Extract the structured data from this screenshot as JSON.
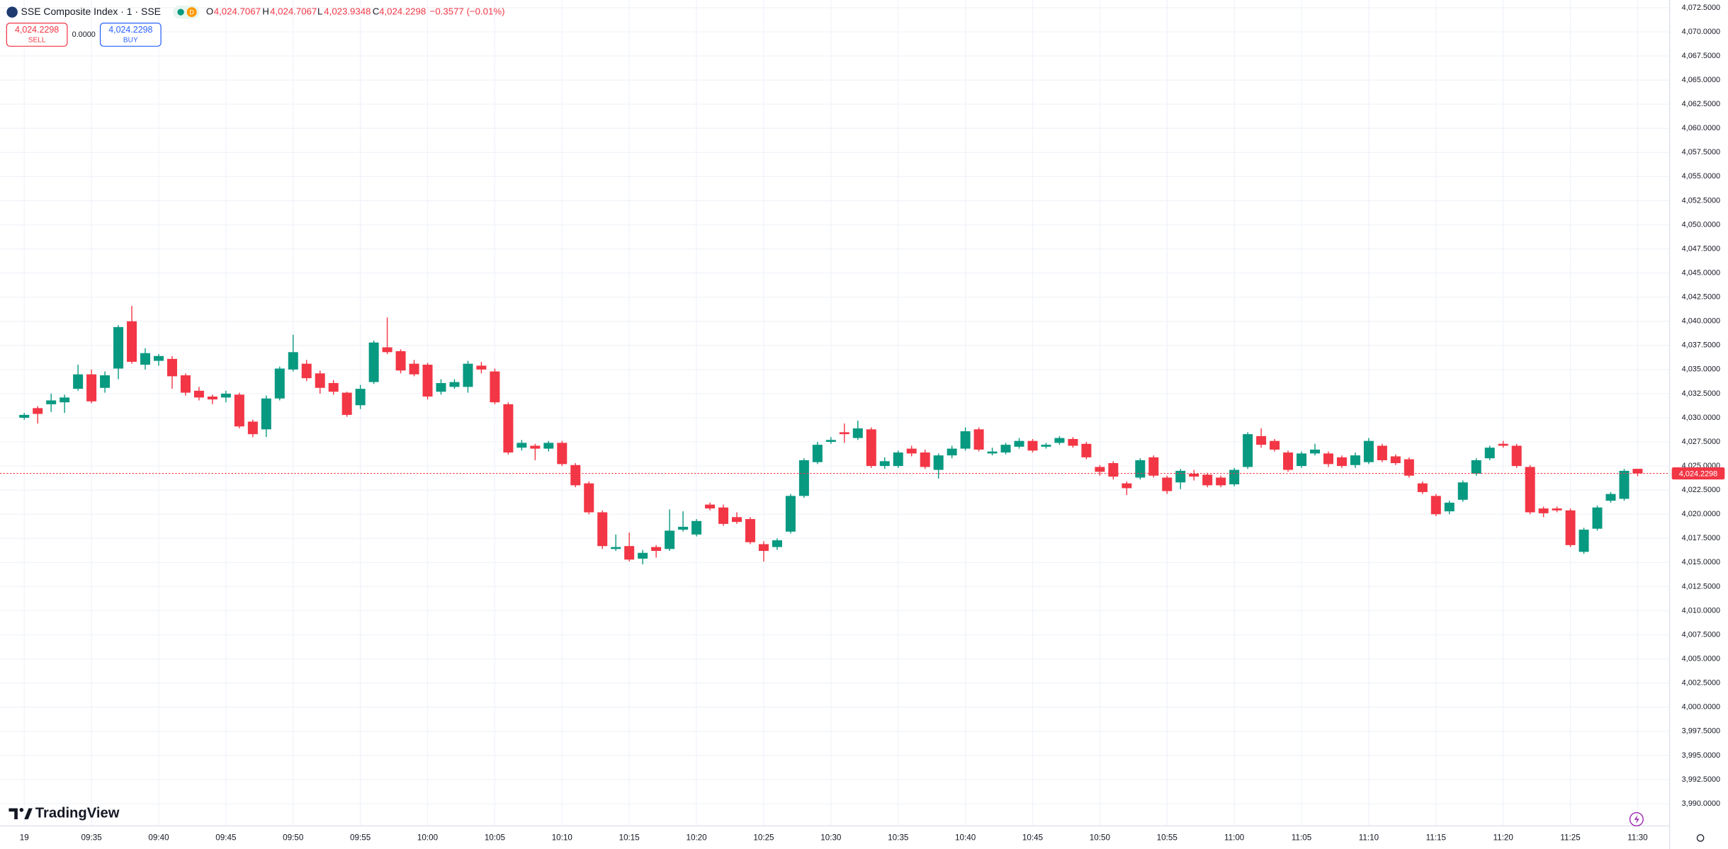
{
  "header": {
    "title": "SSE Composite Index · 1 · SSE",
    "badge": "D",
    "open_label": "O",
    "open": "4,024.7067",
    "high_label": "H",
    "high": "4,024.7067",
    "low_label": "L",
    "low": "4,023.9348",
    "close_label": "C",
    "close": "4,024.2298",
    "change": "−0.3577 (−0.01%)",
    "sell_price": "4,024.2298",
    "sell_label": "SELL",
    "spread": "0.0000",
    "buy_price": "4,024.2298",
    "buy_label": "BUY"
  },
  "logo": "TradingView",
  "chart_data": {
    "type": "candlestick",
    "up_color": "#089981",
    "down_color": "#f23645",
    "grid": true,
    "categories": [
      "19",
      null,
      null,
      null,
      null,
      "09:35",
      null,
      null,
      null,
      null,
      "09:40",
      null,
      null,
      null,
      null,
      "09:45",
      null,
      null,
      null,
      null,
      "09:50",
      null,
      null,
      null,
      null,
      "09:55",
      null,
      null,
      null,
      null,
      "10:00",
      null,
      null,
      null,
      null,
      "10:05",
      null,
      null,
      null,
      null,
      "10:10",
      null,
      null,
      null,
      null,
      "10:15",
      null,
      null,
      null,
      null,
      "10:20",
      null,
      null,
      null,
      null,
      "10:25",
      null,
      null,
      null,
      null,
      "10:30",
      null,
      null,
      null,
      null,
      "10:35",
      null,
      null,
      null,
      null,
      "10:40",
      null,
      null,
      null,
      null,
      "10:45",
      null,
      null,
      null,
      null,
      "10:50",
      null,
      null,
      null,
      null,
      "10:55",
      null,
      null,
      null,
      null,
      "11:00",
      null,
      null,
      null,
      null,
      "11:05",
      null,
      null,
      null,
      null,
      "11:10",
      null,
      null,
      null,
      null,
      "11:15",
      null,
      null,
      null,
      null,
      "11:20",
      null,
      null,
      null,
      null,
      "11:25",
      null,
      null,
      null,
      null,
      "11:30"
    ],
    "open": [
      4030.0,
      4031.0,
      4031.4,
      4031.6,
      4033.0,
      4034.5,
      4033.1,
      4035.1,
      4040.0,
      4035.5,
      4035.9,
      4036.1,
      4034.4,
      4032.8,
      4032.2,
      4032.1,
      4032.4,
      4029.6,
      4028.8,
      4032.0,
      4035.0,
      4035.6,
      4034.6,
      4033.6,
      4032.6,
      4031.3,
      4033.7,
      4037.3,
      4036.9,
      4035.6,
      4035.5,
      4032.7,
      4033.2,
      4033.2,
      4035.4,
      4034.8,
      4031.4,
      4026.9,
      4027.1,
      4026.8,
      4027.4,
      4025.1,
      4023.2,
      4020.2,
      4016.4,
      4016.7,
      4015.4,
      4016.6,
      4016.4,
      4018.4,
      4017.9,
      4021.0,
      4020.7,
      4019.7,
      4019.5,
      4016.9,
      4016.6,
      4018.2,
      4021.9,
      4025.4,
      4027.5,
      4028.5,
      4027.9,
      4028.8,
      4025.0,
      4025.0,
      4026.8,
      4026.4,
      4024.6,
      4026.1,
      4026.8,
      4028.8,
      4026.3,
      4026.4,
      4027.0,
      4027.6,
      4027.0,
      4027.4,
      4027.8,
      4027.3,
      4024.9,
      4025.3,
      4023.2,
      4023.8,
      4025.9,
      4023.8,
      4023.3,
      4024.2,
      4024.1,
      4023.8,
      4023.1,
      4024.9,
      4028.1,
      4027.6,
      4026.4,
      4025.0,
      4026.3,
      4026.3,
      4025.9,
      4025.1,
      4025.4,
      4027.1,
      4026.0,
      4025.7,
      4023.2,
      4021.9,
      4020.3,
      4021.5,
      4024.2,
      4025.8,
      4027.3,
      4027.1,
      4024.9,
      4020.6,
      4020.6,
      4020.4,
      4016.1,
      4018.5,
      4021.4,
      4021.6,
      4024.7067
    ],
    "high": [
      4030.5,
      4031.2,
      4032.5,
      4032.4,
      4035.5,
      4035.0,
      4034.8,
      4039.6,
      4041.6,
      4037.2,
      4036.6,
      4036.4,
      4034.6,
      4033.2,
      4032.4,
      4032.8,
      4032.6,
      4029.8,
      4032.3,
      4035.3,
      4038.6,
      4036.0,
      4034.9,
      4033.9,
      4032.7,
      4033.4,
      4038.0,
      4040.4,
      4037.1,
      4036.0,
      4035.7,
      4034.0,
      4034.0,
      4035.9,
      4035.8,
      4035.1,
      4031.6,
      4027.7,
      4027.3,
      4027.6,
      4027.6,
      4025.3,
      4023.4,
      4020.4,
      4017.9,
      4018.1,
      4016.3,
      4016.8,
      4020.5,
      4020.3,
      4019.5,
      4021.2,
      4021.0,
      4020.2,
      4019.7,
      4017.2,
      4017.5,
      4022.1,
      4025.8,
      4027.5,
      4028.0,
      4029.4,
      4029.7,
      4029.0,
      4025.9,
      4026.6,
      4027.1,
      4026.7,
      4026.3,
      4027.1,
      4029.0,
      4029.0,
      4026.9,
      4027.4,
      4027.9,
      4027.8,
      4027.4,
      4028.1,
      4028.0,
      4027.5,
      4025.1,
      4025.5,
      4023.4,
      4025.8,
      4026.1,
      4024.0,
      4024.7,
      4024.6,
      4024.3,
      4024.0,
      4024.8,
      4028.5,
      4028.9,
      4027.8,
      4026.6,
      4026.5,
      4027.3,
      4026.5,
      4026.1,
      4026.4,
      4027.9,
      4027.3,
      4026.2,
      4025.9,
      4023.4,
      4022.1,
      4021.4,
      4023.5,
      4025.8,
      4027.1,
      4027.6,
      4027.3,
      4025.1,
      4020.8,
      4020.8,
      4020.6,
      4018.6,
      4020.9,
      4022.3,
      4024.7,
      4024.7067
    ],
    "low": [
      4029.8,
      4029.4,
      4030.6,
      4030.5,
      4032.8,
      4031.5,
      4032.6,
      4034.0,
      4035.6,
      4035.0,
      4035.4,
      4033.0,
      4032.3,
      4031.8,
      4031.4,
      4031.6,
      4028.9,
      4028.0,
      4028.0,
      4031.8,
      4034.8,
      4033.8,
      4032.5,
      4032.4,
      4030.1,
      4030.9,
      4033.5,
      4036.6,
      4034.6,
      4034.3,
      4031.9,
      4032.4,
      4033.0,
      4032.6,
      4034.6,
      4031.4,
      4026.2,
      4026.6,
      4025.6,
      4026.5,
      4025.0,
      4022.8,
      4020.0,
      4016.4,
      4016.2,
      4015.1,
      4014.8,
      4015.5,
      4016.2,
      4018.2,
      4017.7,
      4020.4,
      4018.8,
      4019.0,
      4016.9,
      4015.1,
      4016.3,
      4018.0,
      4021.7,
      4025.2,
      4027.3,
      4027.4,
      4027.7,
      4024.8,
      4024.7,
      4024.8,
      4026.0,
      4024.7,
      4023.7,
      4025.8,
      4026.6,
      4026.5,
      4026.1,
      4026.2,
      4026.8,
      4026.4,
      4026.8,
      4027.2,
      4026.9,
      4025.7,
      4024.0,
      4023.6,
      4022.0,
      4023.6,
      4023.8,
      4022.1,
      4022.6,
      4023.5,
      4022.8,
      4022.8,
      4022.9,
      4024.7,
      4026.9,
      4026.5,
      4024.4,
      4024.8,
      4026.1,
      4024.9,
      4024.8,
      4024.8,
      4025.2,
      4025.4,
      4025.1,
      4023.8,
      4022.1,
      4019.8,
      4020.0,
      4021.3,
      4024.0,
      4025.6,
      4026.9,
      4024.8,
      4020.0,
      4019.7,
      4020.2,
      4016.6,
      4015.9,
      4018.3,
      4021.2,
      4021.4,
      4023.9348
    ],
    "close": [
      4030.3,
      4030.4,
      4031.8,
      4032.1,
      4034.5,
      4031.7,
      4034.4,
      4039.4,
      4035.8,
      4036.7,
      4036.4,
      4034.3,
      4032.6,
      4032.1,
      4031.9,
      4032.5,
      4029.1,
      4028.3,
      4032.0,
      4035.1,
      4036.8,
      4034.1,
      4033.1,
      4032.7,
      4030.3,
      4033.0,
      4037.8,
      4036.8,
      4034.9,
      4034.5,
      4032.2,
      4033.6,
      4033.7,
      4035.6,
      4035.0,
      4031.6,
      4026.4,
      4027.4,
      4026.8,
      4027.4,
      4025.2,
      4023.0,
      4020.2,
      4016.7,
      4016.6,
      4015.3,
      4016.0,
      4016.2,
      4018.3,
      4018.7,
      4019.3,
      4020.6,
      4019.0,
      4019.2,
      4017.1,
      4016.2,
      4017.3,
      4021.9,
      4025.6,
      4027.2,
      4027.7,
      4028.3,
      4028.9,
      4025.0,
      4025.5,
      4026.4,
      4026.3,
      4024.9,
      4026.1,
      4026.8,
      4028.6,
      4026.7,
      4026.5,
      4027.2,
      4027.6,
      4026.6,
      4027.2,
      4027.9,
      4027.1,
      4025.9,
      4024.4,
      4023.9,
      4022.7,
      4025.6,
      4024.0,
      4022.4,
      4024.5,
      4023.9,
      4023.0,
      4023.0,
      4024.6,
      4028.3,
      4027.2,
      4026.7,
      4024.6,
      4026.3,
      4026.7,
      4025.2,
      4025.0,
      4026.1,
      4027.6,
      4025.6,
      4025.3,
      4024.0,
      4022.3,
      4020.0,
      4021.2,
      4023.3,
      4025.6,
      4026.9,
      4027.1,
      4025.0,
      4020.2,
      4020.1,
      4020.4,
      4016.8,
      4018.4,
      4020.7,
      4022.1,
      4024.5,
      4024.2298
    ],
    "last_price_label": "4,024.2298",
    "ylim": [
      3987.7,
      4073.3
    ],
    "yticks": [
      {
        "value": 3990,
        "label": "3,990.0000"
      },
      {
        "value": 3992.5,
        "label": "3,992.5000"
      },
      {
        "value": 3995,
        "label": "3,995.0000"
      },
      {
        "value": 3997.5,
        "label": "3,997.5000"
      },
      {
        "value": 4000,
        "label": "4,000.0000"
      },
      {
        "value": 4002.5,
        "label": "4,002.5000"
      },
      {
        "value": 4005,
        "label": "4,005.0000"
      },
      {
        "value": 4007.5,
        "label": "4,007.5000"
      },
      {
        "value": 4010,
        "label": "4,010.0000"
      },
      {
        "value": 4012.5,
        "label": "4,012.5000"
      },
      {
        "value": 4015,
        "label": "4,015.0000"
      },
      {
        "value": 4017.5,
        "label": "4,017.5000"
      },
      {
        "value": 4020,
        "label": "4,020.0000"
      },
      {
        "value": 4022.5,
        "label": "4,022.5000"
      },
      {
        "value": 4025,
        "label": "4,025.0000"
      },
      {
        "value": 4027.5,
        "label": "4,027.5000"
      },
      {
        "value": 4030,
        "label": "4,030.0000"
      },
      {
        "value": 4032.5,
        "label": "4,032.5000"
      },
      {
        "value": 4035,
        "label": "4,035.0000"
      },
      {
        "value": 4037.5,
        "label": "4,037.5000"
      },
      {
        "value": 4040,
        "label": "4,040.0000"
      },
      {
        "value": 4042.5,
        "label": "4,042.5000"
      },
      {
        "value": 4045,
        "label": "4,045.0000"
      },
      {
        "value": 4047.5,
        "label": "4,047.5000"
      },
      {
        "value": 4050,
        "label": "4,050.0000"
      },
      {
        "value": 4052.5,
        "label": "4,052.5000"
      },
      {
        "value": 4055,
        "label": "4,055.0000"
      },
      {
        "value": 4057.5,
        "label": "4,057.5000"
      },
      {
        "value": 4060,
        "label": "4,060.0000"
      },
      {
        "value": 4062.5,
        "label": "4,062.5000"
      },
      {
        "value": 4065,
        "label": "4,065.0000"
      },
      {
        "value": 4067.5,
        "label": "4,067.5000"
      },
      {
        "value": 4070,
        "label": "4,070.0000"
      },
      {
        "value": 4072.5,
        "label": "4,072.5000"
      }
    ]
  }
}
